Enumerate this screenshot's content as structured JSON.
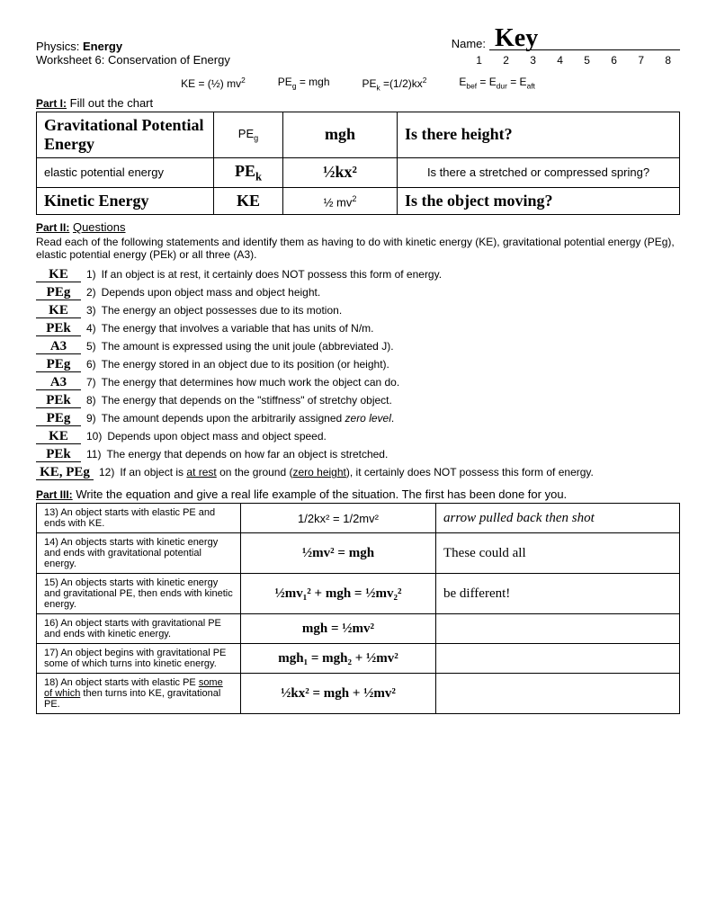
{
  "header": {
    "course": "Physics: Energy",
    "worksheet": "Worksheet 6: Conservation of Energy",
    "name_label": "Name:",
    "name_value": "Key",
    "numbers": "1  2  3  4  5  6  7  8"
  },
  "formulas": {
    "ke": "KE = (½) mv²",
    "peg": "PEg = mgh",
    "pek": "PEk =(1/2)kx²",
    "ebef": "Ebef = Edur = Eaft"
  },
  "part1": {
    "label": "Part I:",
    "instruction": "Fill out the chart",
    "rows": [
      {
        "c1": "Gravitational Potential Energy",
        "c1_hw": true,
        "c2": "PEg",
        "c2_hw": false,
        "c3": "mgh",
        "c3_hw": true,
        "c4": "Is there height?",
        "c4_hw": true
      },
      {
        "c1": "elastic potential energy",
        "c1_hw": false,
        "c2": "PEk",
        "c2_hw": true,
        "c3": "½kx²",
        "c3_hw": true,
        "c4": "Is there a stretched or compressed spring?",
        "c4_hw": false
      },
      {
        "c1": "Kinetic Energy",
        "c1_hw": true,
        "c2": "KE",
        "c2_hw": true,
        "c3": "½ mv²",
        "c3_hw": false,
        "c4": "Is the object moving?",
        "c4_hw": true
      }
    ]
  },
  "part2": {
    "label": "Part II:",
    "heading": "Questions",
    "instruction": "Read each of the following statements and identify them as having to do with kinetic energy (KE), gravitational potential energy (PEg), elastic potential energy (PEk) or all three (A3).",
    "items": [
      {
        "ans": "KE",
        "n": "1)",
        "text": "If an object is at rest, it certainly does NOT possess this form of energy."
      },
      {
        "ans": "PEg",
        "n": "2)",
        "text": "Depends upon object mass and object height."
      },
      {
        "ans": "KE",
        "n": "3)",
        "text": "The energy an object possesses due to its motion."
      },
      {
        "ans": "PEk",
        "n": "4)",
        "text": "The energy that involves a variable that has units of N/m."
      },
      {
        "ans": "A3",
        "n": "5)",
        "text": "The amount is expressed using the unit joule (abbreviated J)."
      },
      {
        "ans": "PEg",
        "n": "6)",
        "text": "The energy stored in an object due to its position (or height)."
      },
      {
        "ans": "A3",
        "n": "7)",
        "text": "The energy that determines how much work the object can do."
      },
      {
        "ans": "PEk",
        "n": "8)",
        "text": "The energy that depends on the \"stiffness\" of stretchy object."
      },
      {
        "ans": "PEg",
        "n": "9)",
        "text": "The amount depends upon the arbitrarily assigned zero level."
      },
      {
        "ans": "KE",
        "n": "10)",
        "text": "Depends upon object mass and object speed."
      },
      {
        "ans": "PEk",
        "n": "11)",
        "text": "The energy that depends on how far an object is stretched."
      },
      {
        "ans": "KE, PEg",
        "n": "12)",
        "text": "If an object is at rest on the ground (zero height), it certainly does NOT possess this form of energy."
      }
    ]
  },
  "part3": {
    "label": "Part III:",
    "instruction": "Write the equation and give a real life example of the situation. The first has been done for you.",
    "rows": [
      {
        "n": "13)",
        "desc": "An object starts with elastic PE and ends with KE.",
        "eq": "1/2kx² = 1/2mv²",
        "ex": "arrow pulled back then shot"
      },
      {
        "n": "14)",
        "desc": "An objects starts with kinetic energy and ends with gravitational potential energy.",
        "eq": "½mv² = mgh",
        "ex": "These could all"
      },
      {
        "n": "15)",
        "desc": "An objects starts with kinetic energy and gravitational PE, then ends with kinetic energy.",
        "eq": "½mv₁² + mgh = ½mv₂²",
        "ex": "be different!"
      },
      {
        "n": "16)",
        "desc": "An object starts with gravitational PE and ends with kinetic energy.",
        "eq": "mgh = ½mv²",
        "ex": ""
      },
      {
        "n": "17)",
        "desc": "An object begins with gravitational PE some of which turns into kinetic energy.",
        "eq": "mgh₁ = mgh₂ + ½mv²",
        "ex": ""
      },
      {
        "n": "18)",
        "desc": "An object starts with elastic PE some of which then turns into KE, gravitational PE.",
        "eq": "½kx² = mgh + ½mv²",
        "ex": ""
      }
    ]
  }
}
